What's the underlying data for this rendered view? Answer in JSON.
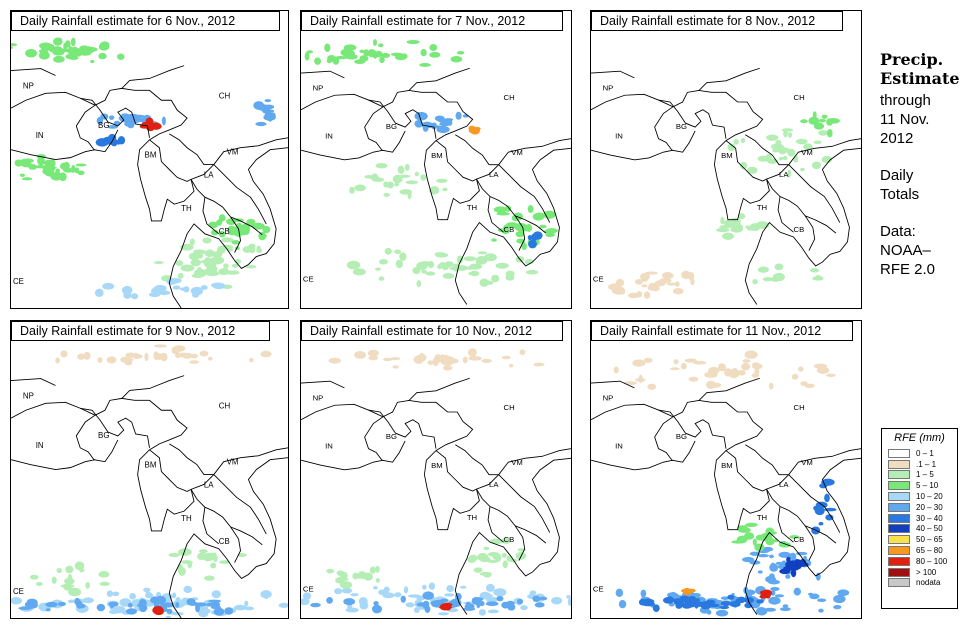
{
  "panels": [
    {
      "title": "Daily Rainfall estimate for  6 Nov., 2012",
      "rain": "heavy-north"
    },
    {
      "title": "Daily Rainfall estimate for  7 Nov., 2012",
      "rain": "moderate"
    },
    {
      "title": "Daily Rainfall estimate for  8 Nov., 2012",
      "rain": "light"
    },
    {
      "title": "Daily Rainfall estimate for  9 Nov., 2012",
      "rain": "south"
    },
    {
      "title": "Daily Rainfall estimate for  10 Nov., 2012",
      "rain": "south"
    },
    {
      "title": "Daily Rainfall estimate for  11 Nov., 2012",
      "rain": "heavy-south"
    }
  ],
  "country_labels": [
    "NP",
    "CH",
    "IN",
    "BG",
    "BM",
    "VM",
    "LA",
    "TH",
    "CB",
    "CE"
  ],
  "sidebar": {
    "title_line1": "Precip.",
    "title_line2": "Estimate",
    "through": "through",
    "date_line1": "11 Nov.",
    "date_line2": "2012",
    "daily_line1": "Daily",
    "daily_line2": "Totals",
    "data_line1": "Data:",
    "data_line2": "NOAA–",
    "data_line3": "RFE 2.0"
  },
  "legend": {
    "title": "RFE (mm)",
    "items": [
      {
        "label": "0 – 1",
        "color": "#ffffff"
      },
      {
        "label": ".1 – 1",
        "color": "#f0dcc0"
      },
      {
        "label": "1 – 5",
        "color": "#b4eeb4"
      },
      {
        "label": "5 – 10",
        "color": "#78e878"
      },
      {
        "label": "10 – 20",
        "color": "#a8d8f8"
      },
      {
        "label": "20 – 30",
        "color": "#60a8f0"
      },
      {
        "label": "30 – 40",
        "color": "#2878e0"
      },
      {
        "label": "40 – 50",
        "color": "#1040c0"
      },
      {
        "label": "50 – 65",
        "color": "#f8e050"
      },
      {
        "label": "65 – 80",
        "color": "#f89820"
      },
      {
        "label": "80 – 100",
        "color": "#e02010"
      },
      {
        "label": "> 100",
        "color": "#a01010"
      },
      {
        "label": "nodata",
        "color": "#c8c8c8"
      }
    ]
  }
}
